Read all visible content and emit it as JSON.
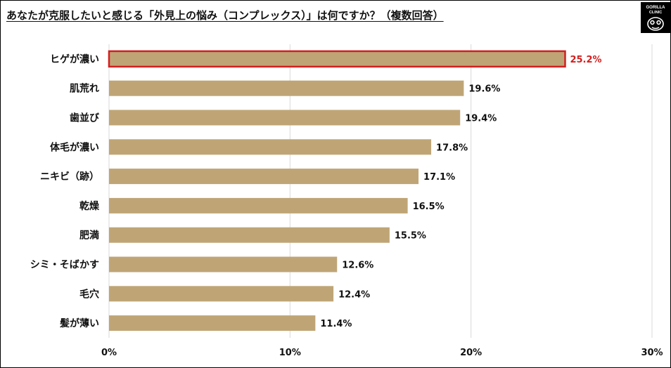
{
  "logo": {
    "text_top": "GORILLA",
    "text_bottom": "CLINIC"
  },
  "chart_data": {
    "type": "bar",
    "orientation": "horizontal",
    "title": "あなたが克服したいと感じる「外見上の悩み（コンプレックス）」は何ですか？（複数回答）",
    "categories": [
      "ヒゲが濃い",
      "肌荒れ",
      "歯並び",
      "体毛が濃い",
      "ニキビ（跡）",
      "乾燥",
      "肥満",
      "シミ・そばかす",
      "毛穴",
      "髪が薄い"
    ],
    "values": [
      25.2,
      19.6,
      19.4,
      17.8,
      17.1,
      16.5,
      15.5,
      12.6,
      12.4,
      11.4
    ],
    "value_labels": [
      "25.2%",
      "19.6%",
      "19.4%",
      "17.8%",
      "17.1%",
      "16.5%",
      "15.5%",
      "12.6%",
      "12.4%",
      "11.4%"
    ],
    "xlim": [
      0,
      30
    ],
    "xticks": [
      0,
      10,
      20,
      30
    ],
    "xtick_labels": [
      "0%",
      "10%",
      "20%",
      "30%"
    ],
    "grid": true,
    "bar_color": "#BFA576",
    "highlight_index": 0,
    "highlight_color": "#D11F1F"
  }
}
